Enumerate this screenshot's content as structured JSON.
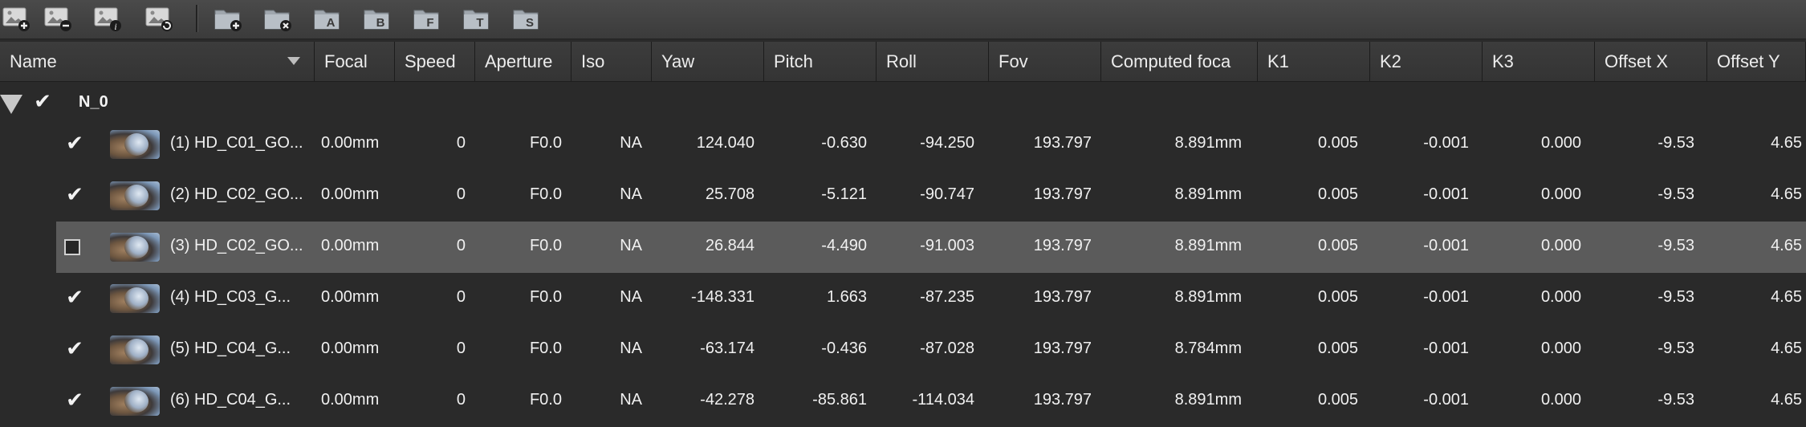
{
  "toolbar": {
    "buttons": [
      {
        "icon": "image-add-icon"
      },
      {
        "icon": "image-remove-icon"
      },
      {
        "icon": "image-info-icon"
      },
      {
        "icon": "image-refresh-icon"
      },
      {
        "icon": "folder-add-icon"
      },
      {
        "icon": "folder-remove-icon"
      },
      {
        "icon": "folder-tag-icon",
        "letter": "A"
      },
      {
        "icon": "folder-tag-icon",
        "letter": "B"
      },
      {
        "icon": "folder-tag-icon",
        "letter": "F"
      },
      {
        "icon": "folder-tag-icon",
        "letter": "T"
      },
      {
        "icon": "folder-tag-icon",
        "letter": "S"
      }
    ]
  },
  "columns": [
    "Name",
    "Focal",
    "Speed",
    "Aperture",
    "Iso",
    "Yaw",
    "Pitch",
    "Roll",
    "Fov",
    "Computed foca",
    "K1",
    "K2",
    "K3",
    "Offset X",
    "Offset Y"
  ],
  "group": {
    "label": "N_0",
    "checked": true,
    "expanded": true
  },
  "rows": [
    {
      "checked": true,
      "selected": false,
      "name": "(1) HD_C01_GO...",
      "focal": "0.00mm",
      "speed": "0",
      "aperture": "F0.0",
      "iso": "NA",
      "yaw": "124.040",
      "pitch": "-0.630",
      "roll": "-94.250",
      "fov": "193.797",
      "computed": "8.891mm",
      "k1": "0.005",
      "k2": "-0.001",
      "k3": "0.000",
      "offx": "-9.53",
      "offy": "4.65"
    },
    {
      "checked": true,
      "selected": false,
      "name": "(2) HD_C02_GO...",
      "focal": "0.00mm",
      "speed": "0",
      "aperture": "F0.0",
      "iso": "NA",
      "yaw": "25.708",
      "pitch": "-5.121",
      "roll": "-90.747",
      "fov": "193.797",
      "computed": "8.891mm",
      "k1": "0.005",
      "k2": "-0.001",
      "k3": "0.000",
      "offx": "-9.53",
      "offy": "4.65"
    },
    {
      "checked": false,
      "selected": true,
      "name": "(3) HD_C02_GO...",
      "focal": "0.00mm",
      "speed": "0",
      "aperture": "F0.0",
      "iso": "NA",
      "yaw": "26.844",
      "pitch": "-4.490",
      "roll": "-91.003",
      "fov": "193.797",
      "computed": "8.891mm",
      "k1": "0.005",
      "k2": "-0.001",
      "k3": "0.000",
      "offx": "-9.53",
      "offy": "4.65"
    },
    {
      "checked": true,
      "selected": false,
      "name": "(4) HD_C03_G...",
      "focal": "0.00mm",
      "speed": "0",
      "aperture": "F0.0",
      "iso": "NA",
      "yaw": "-148.331",
      "pitch": "1.663",
      "roll": "-87.235",
      "fov": "193.797",
      "computed": "8.891mm",
      "k1": "0.005",
      "k2": "-0.001",
      "k3": "0.000",
      "offx": "-9.53",
      "offy": "4.65"
    },
    {
      "checked": true,
      "selected": false,
      "name": "(5) HD_C04_G...",
      "focal": "0.00mm",
      "speed": "0",
      "aperture": "F0.0",
      "iso": "NA",
      "yaw": "-63.174",
      "pitch": "-0.436",
      "roll": "-87.028",
      "fov": "193.797",
      "computed": "8.784mm",
      "k1": "0.005",
      "k2": "-0.001",
      "k3": "0.000",
      "offx": "-9.53",
      "offy": "4.65"
    },
    {
      "checked": true,
      "selected": false,
      "name": "(6) HD_C04_G...",
      "focal": "0.00mm",
      "speed": "0",
      "aperture": "F0.0",
      "iso": "NA",
      "yaw": "-42.278",
      "pitch": "-85.861",
      "roll": "-114.034",
      "fov": "193.797",
      "computed": "8.891mm",
      "k1": "0.005",
      "k2": "-0.001",
      "k3": "0.000",
      "offx": "-9.53",
      "offy": "4.65"
    }
  ],
  "colors": {
    "selected_row": "#5b5b5b",
    "background": "#2a2a2a",
    "header": "#383838"
  }
}
